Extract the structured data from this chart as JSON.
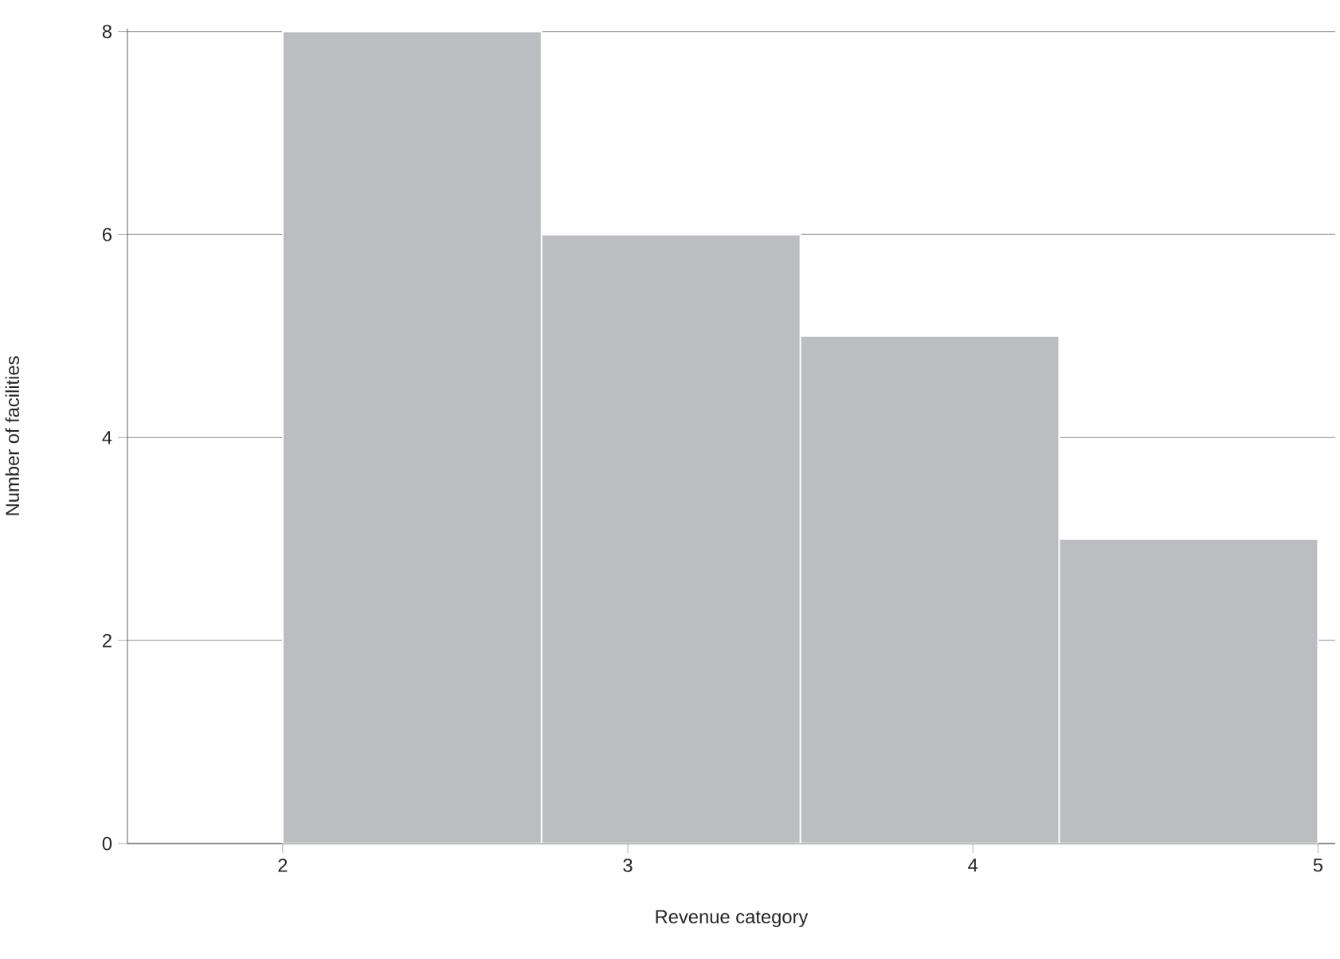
{
  "chart_data": {
    "type": "histogram",
    "xlabel": "Revenue category",
    "ylabel": "Number of facilities",
    "bins": [
      2,
      2.75,
      3.5,
      4.25,
      5
    ],
    "values": [
      8,
      6,
      5,
      3
    ],
    "color": "#bcbdc0",
    "xlim": [
      1.55,
      5.05
    ],
    "ylim": [
      0,
      8.03
    ],
    "xticks": [
      2,
      3,
      4,
      5
    ],
    "yticks": [
      0,
      2,
      4,
      6,
      8
    ],
    "grid": "y"
  }
}
